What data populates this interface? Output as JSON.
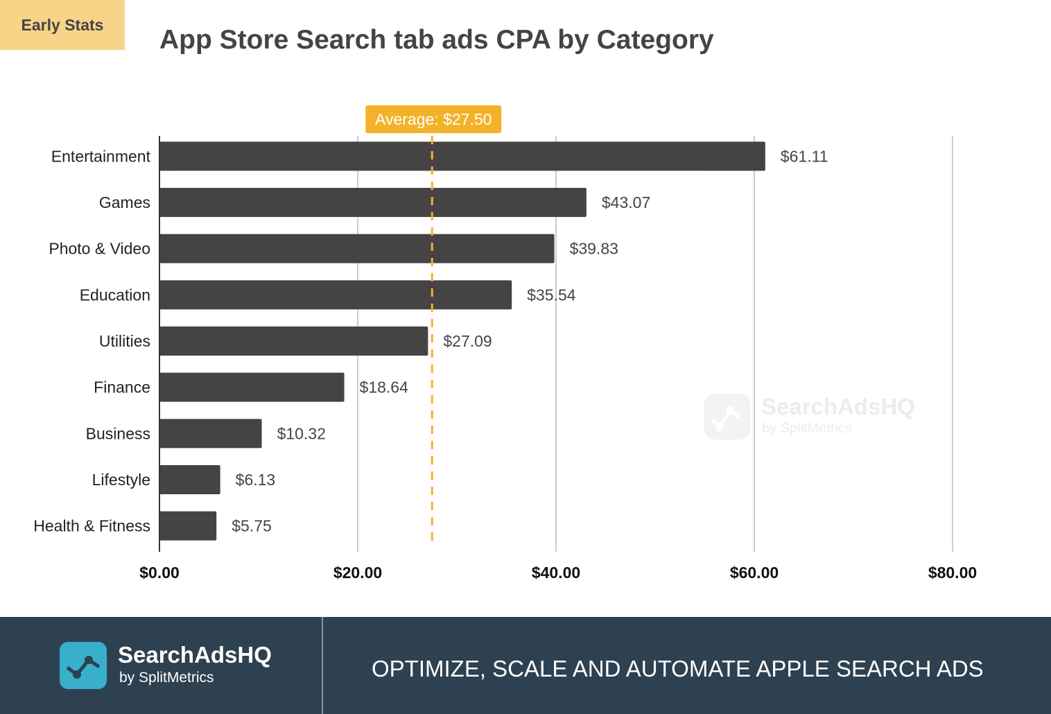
{
  "badge": "Early Stats",
  "chart_data": {
    "type": "bar",
    "orientation": "horizontal",
    "title": "App Store Search tab ads CPA by Category",
    "categories": [
      "Entertainment",
      "Games",
      "Photo & Video",
      "Education",
      "Utilities",
      "Finance",
      "Business",
      "Lifestyle",
      "Health & Fitness"
    ],
    "values": [
      61.11,
      43.07,
      39.83,
      35.54,
      27.09,
      18.64,
      10.32,
      6.13,
      5.75
    ],
    "data_labels": [
      "$61.11",
      "$43.07",
      "$39.83",
      "$35.54",
      "$27.09",
      "$18.64",
      "$10.32",
      "$6.13",
      "$5.75"
    ],
    "xlim": [
      0,
      80
    ],
    "xticks": [
      0,
      20,
      40,
      60,
      80
    ],
    "xtick_labels": [
      "$0.00",
      "$20.00",
      "$40.00",
      "$60.00",
      "$80.00"
    ],
    "grid": true,
    "average": {
      "value": 27.5,
      "label": "Average: $27.50",
      "color": "#f3b229"
    },
    "bar_color": "#444444"
  },
  "watermark": {
    "title": "SearchAdsHQ",
    "subtitle": "by SplitMetrics"
  },
  "footer": {
    "brand": "SearchAdsHQ",
    "brand_sub": "by SplitMetrics",
    "slogan": "OPTIMIZE, SCALE AND AUTOMATE APPLE SEARCH ADS",
    "background": "#2d4150",
    "logo_color": "#38b0cc"
  }
}
